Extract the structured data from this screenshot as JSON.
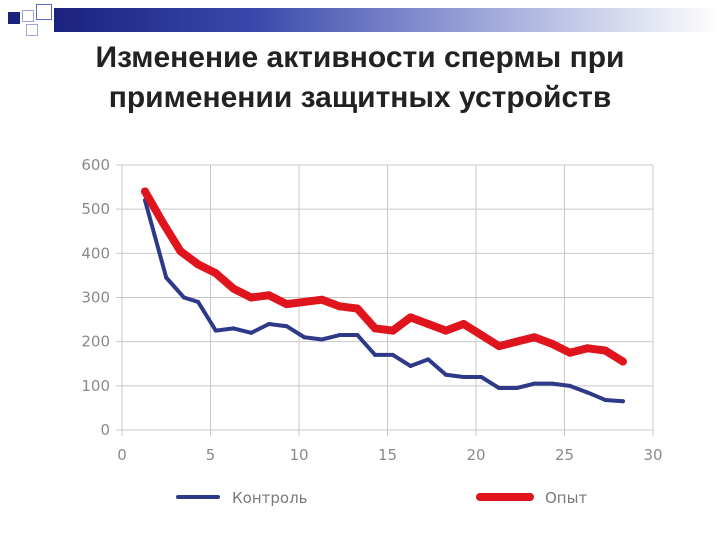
{
  "slide": {
    "title": "Изменение активности спермы при применении защитных устройств"
  },
  "colors": {
    "header_bar": "#1a237e",
    "control": "#2e3a87",
    "experiment": "#e0141c",
    "grid": "#c8c8c8",
    "axis_text": "#8a8a8a"
  },
  "chart_data": {
    "type": "line",
    "title": "",
    "xlabel": "",
    "ylabel": "",
    "xlim": [
      0,
      30
    ],
    "ylim": [
      0,
      600
    ],
    "x_ticks": [
      0,
      5,
      10,
      15,
      20,
      25,
      30
    ],
    "y_ticks": [
      0,
      100,
      200,
      300,
      400,
      500,
      600
    ],
    "grid": true,
    "legend_position": "bottom",
    "series": [
      {
        "name": "Контроль",
        "color": "#2e3a87",
        "x": [
          1.3,
          2.5,
          3.5,
          4.3,
          5.3,
          6.3,
          7.3,
          8.3,
          9.3,
          10.3,
          11.3,
          12.3,
          13.3,
          14.3,
          15.3,
          16.3,
          17.3,
          18.3,
          19.3,
          20.3,
          21.3,
          22.3,
          23.3,
          24.3,
          25.3,
          26.3,
          27.3,
          28.3
        ],
        "values": [
          520,
          345,
          300,
          290,
          225,
          230,
          220,
          240,
          235,
          210,
          205,
          215,
          215,
          170,
          170,
          145,
          160,
          125,
          120,
          120,
          95,
          95,
          105,
          105,
          100,
          85,
          68,
          65
        ]
      },
      {
        "name": "Опыт",
        "color": "#e0141c",
        "x": [
          1.3,
          2.3,
          3.3,
          4.3,
          5.3,
          6.3,
          7.3,
          8.3,
          9.3,
          10.3,
          11.3,
          12.3,
          13.3,
          14.3,
          15.3,
          16.3,
          17.3,
          18.3,
          19.3,
          20.3,
          21.3,
          22.3,
          23.3,
          24.3,
          25.3,
          26.3,
          27.3,
          28.3
        ],
        "values": [
          540,
          470,
          405,
          375,
          355,
          320,
          300,
          305,
          285,
          290,
          295,
          280,
          275,
          230,
          225,
          255,
          240,
          225,
          240,
          215,
          190,
          200,
          210,
          195,
          175,
          185,
          180,
          155
        ]
      }
    ]
  }
}
